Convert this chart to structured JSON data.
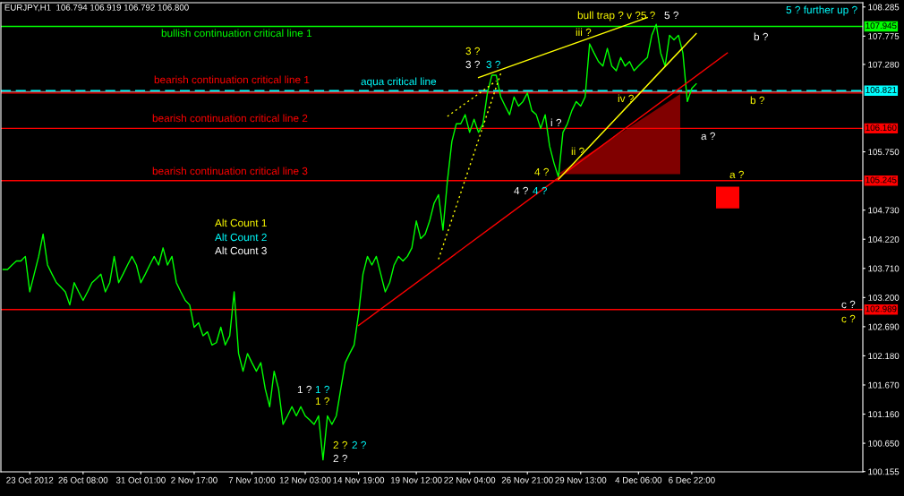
{
  "chart_data": {
    "type": "line",
    "title": "EURJPY,H1  106.794 106.919 106.792 106.800",
    "ylim": [
      100.15,
      108.36
    ],
    "categories": [
      null,
      null,
      null,
      null,
      null,
      null,
      "23 Oct 2012",
      null,
      null,
      null,
      null,
      null,
      null,
      null,
      null,
      null,
      null,
      null,
      "26 Oct 08:00",
      null,
      null,
      null,
      null,
      null,
      null,
      null,
      null,
      null,
      null,
      null,
      null,
      "31 Oct 01:00",
      null,
      null,
      null,
      null,
      null,
      null,
      null,
      null,
      null,
      null,
      null,
      "2 Nov 17:00",
      null,
      null,
      null,
      null,
      null,
      null,
      null,
      null,
      null,
      null,
      null,
      null,
      "7 Nov 10:00",
      null,
      null,
      null,
      null,
      null,
      null,
      null,
      null,
      null,
      null,
      null,
      "12 Nov 03:00",
      null,
      null,
      null,
      null,
      null,
      null,
      null,
      null,
      null,
      null,
      null,
      "14 Nov 19:00",
      null,
      null,
      null,
      null,
      null,
      null,
      null,
      null,
      null,
      null,
      null,
      null,
      "19 Nov 12:00",
      null,
      null,
      null,
      null,
      null,
      null,
      null,
      null,
      null,
      null,
      null,
      "22 Nov 04:00",
      null,
      null,
      null,
      null,
      null,
      null,
      null,
      null,
      null,
      null,
      null,
      null,
      "26 Nov 21:00",
      null,
      null,
      null,
      null,
      null,
      null,
      null,
      null,
      null,
      null,
      null,
      "29 Nov 13:00",
      null,
      null,
      null,
      null,
      null,
      null,
      null,
      null,
      null,
      null,
      null,
      null,
      "4 Dec 06:00",
      null,
      null,
      null,
      null,
      null,
      null,
      null,
      null,
      null,
      null,
      null,
      "6 Dec 22:00",
      null,
      null,
      null,
      null,
      null,
      null,
      null,
      null,
      null,
      null,
      null,
      null,
      null,
      null,
      null,
      null,
      null,
      null,
      null,
      null,
      null,
      null,
      null,
      null,
      null,
      null,
      null,
      null,
      null,
      null,
      null,
      null,
      null,
      null,
      null,
      null,
      null,
      null
    ],
    "yticks": [
      108.285,
      107.775,
      {
        "value": 107.28,
        "label": "107.280"
      },
      {
        "value": 105.75,
        "label": "105.750"
      },
      {
        "value": 104.73,
        "label": "104.730"
      },
      {
        "value": 104.22,
        "label": "104.220"
      },
      {
        "value": 103.71,
        "label": "103.710"
      },
      {
        "value": 103.2,
        "label": "103.200"
      },
      {
        "value": 102.69,
        "label": "102.690"
      },
      {
        "value": 102.18,
        "label": "102.180"
      },
      {
        "value": 101.67,
        "label": "101.670"
      },
      {
        "value": 101.16,
        "label": "101.160"
      },
      {
        "value": 100.65,
        "label": "100.650"
      },
      100.155
    ],
    "grid": false,
    "series": [
      {
        "color": "#00ff00",
        "line_style": "solid",
        "values": [
          103.69,
          103.69,
          103.77,
          103.84,
          103.84,
          103.92,
          103.3,
          103.61,
          103.92,
          104.31,
          103.77,
          103.61,
          103.46,
          103.38,
          103.3,
          103.07,
          103.46,
          103.3,
          103.15,
          103.3,
          103.46,
          103.53,
          103.61,
          103.3,
          103.46,
          103.92,
          103.46,
          103.61,
          103.77,
          103.92,
          103.77,
          103.46,
          103.61,
          103.77,
          103.92,
          103.77,
          104.07,
          103.77,
          103.92,
          103.46,
          103.3,
          103.15,
          103.07,
          102.68,
          102.76,
          102.53,
          102.6,
          102.37,
          102.41,
          102.68,
          102.37,
          102.53,
          103.3,
          102.22,
          101.91,
          102.22,
          102.06,
          101.91,
          102.06,
          101.6,
          101.29,
          101.91,
          101.6,
          100.98,
          101.13,
          101.29,
          101.13,
          101.29,
          101.13,
          101.06,
          100.98,
          101.13,
          100.36,
          101.13,
          100.98,
          101.13,
          101.6,
          102.06,
          102.22,
          102.37,
          102.91,
          103.61,
          103.92,
          103.77,
          103.92,
          103.61,
          103.3,
          103.46,
          103.77,
          103.92,
          103.84,
          103.92,
          104.07,
          104.54,
          104.23,
          104.31,
          104.54,
          104.85,
          105.0,
          104.38,
          105.24,
          105.93,
          106.24,
          106.24,
          106.4,
          106.09,
          106.32,
          106.09,
          106.24,
          106.78,
          107.09,
          107.09,
          106.71,
          106.55,
          106.4,
          106.71,
          106.55,
          106.63,
          106.78,
          106.47,
          106.4,
          106.16,
          106.4,
          105.85,
          105.55,
          105.31,
          106.09,
          106.24,
          106.47,
          106.63,
          106.55,
          106.71,
          107.64,
          107.48,
          107.33,
          107.25,
          107.56,
          107.25,
          107.17,
          107.4,
          107.25,
          107.33,
          107.17,
          107.25,
          107.33,
          107.4,
          107.79,
          107.98,
          107.48,
          107.25,
          107.79,
          107.71,
          107.79,
          107.48,
          106.63,
          106.86,
          106.94,
          null,
          null,
          null,
          null,
          null,
          null,
          null,
          null,
          null,
          null,
          null,
          null,
          null,
          null,
          null,
          null,
          null,
          null,
          null,
          null,
          null,
          null,
          null,
          null,
          null,
          null,
          null,
          null,
          null,
          null,
          null,
          null,
          null,
          null,
          null,
          null,
          null
        ]
      },
      {
        "color": "#ff0000",
        "line_style": "solid",
        "values": [
          null,
          null,
          null,
          null,
          null,
          null,
          null,
          null,
          null,
          null,
          null,
          null,
          null,
          null,
          null,
          null,
          null,
          null,
          null,
          null,
          null,
          null,
          null,
          null,
          null,
          null,
          null,
          null,
          null,
          null,
          null,
          null,
          null,
          null,
          null,
          null,
          null,
          null,
          null,
          null,
          null,
          null,
          null,
          null,
          null,
          null,
          null,
          null,
          null,
          null,
          null,
          null,
          null,
          null,
          null,
          null,
          null,
          null,
          null,
          null,
          null,
          null,
          null,
          null,
          null,
          null,
          null,
          null,
          null,
          null,
          null,
          null,
          null,
          null,
          null,
          null,
          null,
          null,
          null,
          null,
          102.71,
          null,
          null,
          null,
          null,
          null,
          null,
          null,
          null,
          null,
          null,
          null,
          null,
          null,
          null,
          null,
          null,
          null,
          null,
          null,
          null,
          null,
          null,
          null,
          null,
          null,
          null,
          null,
          null,
          null,
          null,
          null,
          null,
          null,
          null,
          null,
          null,
          null,
          null,
          null,
          null,
          null,
          null,
          null,
          null,
          null,
          null,
          null,
          null,
          null,
          null,
          null,
          null,
          null,
          null,
          null,
          null,
          null,
          null,
          null,
          null,
          null,
          null,
          null,
          null,
          null,
          null,
          null,
          null,
          null,
          null,
          null,
          null,
          null,
          null,
          null,
          null,
          null,
          null,
          null,
          null,
          null,
          null,
          107.48,
          null,
          null,
          null,
          null,
          null,
          null,
          null,
          null,
          null,
          null,
          null,
          null,
          null,
          null,
          null,
          null,
          null,
          null,
          null,
          null,
          null,
          null,
          null,
          null,
          null,
          null,
          null,
          null,
          null,
          null
        ]
      },
      {
        "color": "#ffff00",
        "line_style": "solid",
        "values": [
          null,
          null,
          null,
          null,
          null,
          null,
          null,
          null,
          null,
          null,
          null,
          null,
          null,
          null,
          null,
          null,
          null,
          null,
          null,
          null,
          null,
          null,
          null,
          null,
          null,
          null,
          null,
          null,
          null,
          null,
          null,
          null,
          null,
          null,
          null,
          null,
          null,
          null,
          null,
          null,
          null,
          null,
          null,
          null,
          null,
          null,
          null,
          null,
          null,
          null,
          null,
          null,
          null,
          null,
          null,
          null,
          null,
          null,
          null,
          null,
          null,
          null,
          null,
          null,
          null,
          null,
          null,
          null,
          null,
          null,
          null,
          null,
          null,
          null,
          null,
          null,
          null,
          null,
          null,
          null,
          null,
          null,
          null,
          null,
          null,
          null,
          null,
          null,
          null,
          null,
          null,
          null,
          null,
          null,
          null,
          null,
          null,
          null,
          null,
          null,
          null,
          null,
          null,
          null,
          null,
          null,
          null,
          107.05,
          null,
          null,
          null,
          null,
          null,
          null,
          null,
          null,
          null,
          null,
          null,
          null,
          null,
          null,
          null,
          null,
          null,
          null,
          null,
          null,
          null,
          null,
          null,
          null,
          null,
          null,
          null,
          null,
          null,
          null,
          null,
          null,
          null,
          null,
          null,
          null,
          null,
          108.1,
          null,
          null,
          null,
          null,
          null,
          null,
          null,
          null,
          null,
          null,
          null,
          null,
          null,
          null,
          null,
          null,
          null,
          null,
          null,
          null,
          null,
          null,
          null,
          null,
          null,
          null,
          null,
          null,
          null,
          null,
          null,
          null,
          null,
          null,
          null,
          null,
          null,
          null,
          null,
          null,
          null,
          null,
          null,
          null,
          null,
          null,
          null,
          null
        ]
      },
      {
        "color": "#ffff00",
        "line_style": "solid",
        "values": [
          null,
          null,
          null,
          null,
          null,
          null,
          null,
          null,
          null,
          null,
          null,
          null,
          null,
          null,
          null,
          null,
          null,
          null,
          null,
          null,
          null,
          null,
          null,
          null,
          null,
          null,
          null,
          null,
          null,
          null,
          null,
          null,
          null,
          null,
          null,
          null,
          null,
          null,
          null,
          null,
          null,
          null,
          null,
          null,
          null,
          null,
          null,
          null,
          null,
          null,
          null,
          null,
          null,
          null,
          null,
          null,
          null,
          null,
          null,
          null,
          null,
          null,
          null,
          null,
          null,
          null,
          null,
          null,
          null,
          null,
          null,
          null,
          null,
          null,
          null,
          null,
          null,
          null,
          null,
          null,
          null,
          null,
          null,
          null,
          null,
          null,
          null,
          null,
          null,
          null,
          null,
          null,
          null,
          null,
          null,
          null,
          null,
          null,
          null,
          null,
          null,
          null,
          null,
          null,
          null,
          null,
          null,
          null,
          null,
          null,
          null,
          null,
          null,
          null,
          null,
          null,
          null,
          null,
          null,
          null,
          null,
          null,
          null,
          null,
          null,
          105.27,
          null,
          null,
          null,
          null,
          null,
          null,
          null,
          null,
          null,
          null,
          null,
          null,
          null,
          null,
          null,
          null,
          null,
          null,
          null,
          null,
          null,
          null,
          null,
          null,
          null,
          null,
          null,
          null,
          null,
          null,
          107.82,
          null,
          null,
          null,
          null,
          null,
          null,
          null,
          null,
          null,
          null,
          null,
          null,
          null,
          null,
          null,
          null,
          null,
          null,
          null,
          null,
          null,
          null,
          null,
          null,
          null,
          null,
          null,
          null,
          null,
          null,
          null,
          null,
          null,
          null,
          null,
          null,
          null
        ]
      },
      {
        "color": "#ffff00",
        "line_style": "dotted",
        "values": [
          null,
          null,
          null,
          null,
          null,
          null,
          null,
          null,
          null,
          null,
          null,
          null,
          null,
          null,
          null,
          null,
          null,
          null,
          null,
          null,
          null,
          null,
          null,
          null,
          null,
          null,
          null,
          null,
          null,
          null,
          null,
          null,
          null,
          null,
          null,
          null,
          null,
          null,
          null,
          null,
          null,
          null,
          null,
          null,
          null,
          null,
          null,
          null,
          null,
          null,
          null,
          null,
          null,
          null,
          null,
          null,
          null,
          null,
          null,
          null,
          null,
          null,
          null,
          null,
          null,
          null,
          null,
          null,
          null,
          null,
          null,
          null,
          null,
          null,
          null,
          null,
          null,
          null,
          null,
          null,
          null,
          null,
          null,
          null,
          null,
          null,
          null,
          null,
          null,
          null,
          null,
          null,
          null,
          null,
          null,
          null,
          null,
          null,
          103.87,
          null,
          null,
          null,
          null,
          null,
          null,
          null,
          null,
          null,
          null,
          null,
          null,
          null,
          107.12,
          null,
          null,
          null,
          null,
          null,
          null,
          null,
          null,
          null,
          null,
          null,
          null,
          null,
          null,
          null,
          null,
          null,
          null,
          null,
          null,
          null,
          null,
          null,
          null,
          null,
          null,
          null,
          null,
          null,
          null,
          null,
          null,
          null,
          null,
          null,
          null,
          null,
          null,
          null,
          null,
          null,
          null,
          null,
          null,
          null,
          null,
          null,
          null,
          null,
          null,
          null,
          null,
          null,
          null,
          null,
          null,
          null,
          null,
          null,
          null,
          null,
          null,
          null,
          null,
          null,
          null,
          null,
          null,
          null,
          null,
          null,
          null,
          null,
          null,
          null,
          null,
          null,
          null,
          null,
          null,
          null
        ]
      },
      {
        "color": "#ffff00",
        "line_style": "dotted",
        "values": [
          null,
          null,
          null,
          null,
          null,
          null,
          null,
          null,
          null,
          null,
          null,
          null,
          null,
          null,
          null,
          null,
          null,
          null,
          null,
          null,
          null,
          null,
          null,
          null,
          null,
          null,
          null,
          null,
          null,
          null,
          null,
          null,
          null,
          null,
          null,
          null,
          null,
          null,
          null,
          null,
          null,
          null,
          null,
          null,
          null,
          null,
          null,
          null,
          null,
          null,
          null,
          null,
          null,
          null,
          null,
          null,
          null,
          null,
          null,
          null,
          null,
          null,
          null,
          null,
          null,
          null,
          null,
          null,
          null,
          null,
          null,
          null,
          null,
          null,
          null,
          null,
          null,
          null,
          null,
          null,
          null,
          null,
          null,
          null,
          null,
          null,
          null,
          null,
          null,
          null,
          null,
          null,
          null,
          null,
          null,
          null,
          null,
          null,
          null,
          null,
          106.37,
          null,
          null,
          null,
          null,
          null,
          null,
          null,
          null,
          null,
          null,
          106.99,
          null,
          null,
          null,
          null,
          null,
          null,
          null,
          null,
          null,
          null,
          null,
          null,
          null,
          null,
          null,
          null,
          null,
          null,
          null,
          null,
          null,
          null,
          null,
          null,
          null,
          null,
          null,
          null,
          null,
          null,
          null,
          null,
          null,
          null,
          null,
          null,
          null,
          null,
          null,
          null,
          null,
          null,
          null,
          null,
          null,
          null,
          null,
          null,
          null,
          null,
          null,
          null,
          null,
          null,
          null,
          null,
          null,
          null,
          null,
          null,
          null,
          null,
          null,
          null,
          null,
          null,
          null,
          null,
          null,
          null,
          null,
          null,
          null,
          null,
          null,
          null,
          null,
          null,
          null,
          null,
          null,
          null
        ]
      }
    ],
    "ref_lines": [
      {
        "axis": "y",
        "value": 107.945,
        "label": "107.945",
        "color": "#00ff00",
        "line_style": "solid"
      },
      {
        "axis": "y",
        "value": 106.8,
        "label": null,
        "color": "#808080",
        "line_style": "solid"
      },
      {
        "axis": "y",
        "value": 106.78,
        "label": null,
        "color": "#ff0000",
        "line_style": "solid"
      },
      {
        "axis": "y",
        "value": 106.821,
        "label": "106.821",
        "color": "#00ffff",
        "line_style": "dashed"
      },
      {
        "axis": "y",
        "value": 106.16,
        "label": "106.160",
        "color": "#ff0000",
        "line_style": "solid"
      },
      {
        "axis": "y",
        "value": 105.245,
        "label": "105.245",
        "color": "#ff0000",
        "line_style": "solid"
      },
      {
        "axis": "y",
        "value": 102.989,
        "label": "102.989",
        "color": "#ff0000",
        "line_style": "solid"
      }
    ],
    "annotations": [
      "bullish continuation critical line 1",
      "bearish continuation critical line 1",
      "aqua critical line",
      "bearish continuation critical line 2",
      "bearish continuation critical line 3",
      "bull trap ? v ?5 ?",
      "5 ?",
      "5 ? further up ?",
      "iii ?",
      "b ?",
      "3 ?",
      "3 ?",
      "3 ?",
      "b ?",
      "iv ?",
      "i ?",
      "a ?",
      "ii ?",
      "4 ?",
      "a ?",
      "4 ?",
      "4 ?",
      "Alt Count 1",
      "Alt Count 2",
      "Alt Count 3",
      "c ?",
      "c ?",
      "1 ?",
      "1 ?",
      "1 ?",
      "2 ?",
      "2 ?",
      "2 ?"
    ]
  }
}
